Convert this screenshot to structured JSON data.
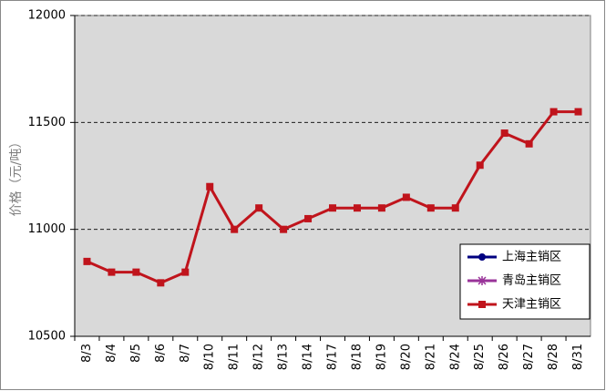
{
  "chart_data": {
    "type": "line",
    "y_label": "价格（元/吨）",
    "categories": [
      "8/3",
      "8/4",
      "8/5",
      "8/6",
      "8/7",
      "8/10",
      "8/11",
      "8/12",
      "8/13",
      "8/14",
      "8/17",
      "8/18",
      "8/19",
      "8/20",
      "8/21",
      "8/24",
      "8/25",
      "8/26",
      "8/27",
      "8/28",
      "8/31"
    ],
    "series": [
      {
        "name": "上海主销区",
        "color": "#000080",
        "marker": "circle",
        "values": [
          null,
          null,
          null,
          null,
          null,
          null,
          null,
          null,
          null,
          null,
          null,
          null,
          null,
          null,
          null,
          null,
          null,
          null,
          null,
          null,
          null
        ]
      },
      {
        "name": "青岛主销区",
        "color": "#993399",
        "marker": "asterisk",
        "values": [
          null,
          null,
          null,
          null,
          null,
          null,
          null,
          null,
          null,
          null,
          null,
          null,
          null,
          null,
          null,
          null,
          null,
          null,
          null,
          null,
          null
        ]
      },
      {
        "name": "天津主销区",
        "color": "#c0141c",
        "marker": "square",
        "values": [
          10850,
          10800,
          10800,
          10750,
          10800,
          11200,
          11000,
          11100,
          11000,
          11050,
          11100,
          11100,
          11100,
          11150,
          11100,
          11100,
          11300,
          11450,
          11400,
          11550,
          11550
        ]
      }
    ],
    "ylim": [
      10500,
      12000
    ],
    "yticks": [
      10500,
      11000,
      11500,
      12000
    ],
    "grid": true,
    "legend": "lower right"
  }
}
